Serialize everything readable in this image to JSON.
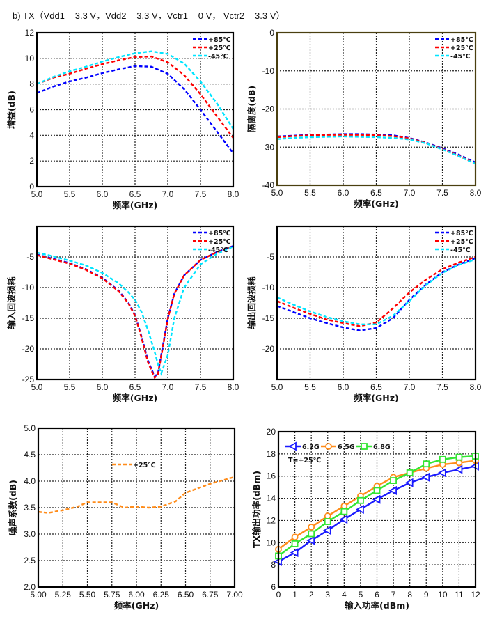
{
  "title": "b) TX（Vdd1 = 3.3 V，Vdd2 = 3.3 V，Vctr1 = 0 V， Vctr2 = 3.3 V）",
  "chart_data": [
    {
      "type": "line",
      "id": "gain",
      "xlabel": "频率(GHz)",
      "ylabel": "增益(dB)",
      "xlim": [
        5.0,
        8.0
      ],
      "ylim": [
        0,
        12
      ],
      "xticks": [
        "5.0",
        "5.5",
        "6.0",
        "6.5",
        "7.0",
        "7.5",
        "8.0"
      ],
      "yticks": [
        "0",
        "2",
        "4",
        "6",
        "8",
        "10",
        "12"
      ],
      "grid": true,
      "legend": "top-right",
      "frame_color": "#000000",
      "x": [
        5.0,
        5.25,
        5.5,
        5.75,
        6.0,
        6.25,
        6.5,
        6.75,
        7.0,
        7.25,
        7.5,
        7.75,
        8.0
      ],
      "series": [
        {
          "name": "+85℃",
          "color": "#0000ff",
          "style": "dashed",
          "values": [
            7.3,
            7.8,
            8.2,
            8.5,
            8.85,
            9.15,
            9.4,
            9.35,
            8.8,
            7.6,
            6.0,
            4.3,
            2.6
          ]
        },
        {
          "name": "+25℃",
          "color": "#ff0000",
          "style": "dashed",
          "values": [
            8.0,
            8.5,
            8.8,
            9.2,
            9.55,
            9.85,
            10.1,
            10.15,
            9.7,
            8.7,
            7.2,
            5.5,
            3.8
          ]
        },
        {
          "name": "-45℃",
          "color": "#00e5ff",
          "style": "dashed",
          "values": [
            8.0,
            8.55,
            9.0,
            9.35,
            9.75,
            10.1,
            10.4,
            10.55,
            10.35,
            9.6,
            8.2,
            6.5,
            4.5
          ]
        }
      ]
    },
    {
      "type": "line",
      "id": "isolation",
      "xlabel": "频率(GHz)",
      "ylabel": "隔离度(dB)",
      "xlim": [
        5.0,
        8.0
      ],
      "ylim": [
        -40,
        0
      ],
      "xticks": [
        "5.0",
        "5.5",
        "6.0",
        "6.5",
        "7.0",
        "7.5",
        "8.0"
      ],
      "yticks": [
        "-40",
        "-30",
        "-20",
        "-10",
        "0"
      ],
      "grid": true,
      "legend": "top-right",
      "frame_color": "#4a3f10",
      "x": [
        5.0,
        5.25,
        5.5,
        5.75,
        6.0,
        6.25,
        6.5,
        6.75,
        7.0,
        7.25,
        7.5,
        7.75,
        8.0
      ],
      "series": [
        {
          "name": "+85℃",
          "color": "#0000ff",
          "style": "dashed",
          "values": [
            -27.2,
            -27.0,
            -26.8,
            -26.7,
            -26.6,
            -26.6,
            -26.7,
            -26.9,
            -27.6,
            -28.8,
            -30.3,
            -32.0,
            -34.0
          ]
        },
        {
          "name": "+25℃",
          "color": "#ff0000",
          "style": "dashed",
          "values": [
            -27.4,
            -27.1,
            -26.9,
            -26.8,
            -26.8,
            -26.8,
            -26.9,
            -27.1,
            -27.7,
            -28.9,
            -30.5,
            -32.3,
            -34.3
          ]
        },
        {
          "name": "-45℃",
          "color": "#00e5ff",
          "style": "dashed",
          "values": [
            -27.9,
            -27.6,
            -27.4,
            -27.3,
            -27.2,
            -27.3,
            -27.4,
            -27.6,
            -28.0,
            -29.0,
            -30.6,
            -32.4,
            -34.4
          ]
        }
      ]
    },
    {
      "type": "line",
      "id": "input-return-loss",
      "xlabel": "频率(GHz)",
      "ylabel": "输入回波损耗",
      "xlim": [
        5.0,
        8.0
      ],
      "ylim": [
        -25,
        0
      ],
      "xticks": [
        "5.0",
        "5.5",
        "6.0",
        "6.5",
        "7.0",
        "7.5",
        "8.0"
      ],
      "yticks": [
        "-25",
        "-20",
        "-15",
        "-10",
        "-5"
      ],
      "grid": true,
      "legend": "top-right",
      "frame_color": "#000000",
      "x": [
        5.0,
        5.25,
        5.5,
        5.75,
        6.0,
        6.25,
        6.4,
        6.5,
        6.6,
        6.7,
        6.8,
        6.85,
        6.9,
        7.0,
        7.1,
        7.25,
        7.5,
        7.75,
        8.0
      ],
      "series": [
        {
          "name": "+85℃",
          "color": "#0000ff",
          "style": "dashed",
          "values": [
            -4.6,
            -5.3,
            -6.0,
            -7.0,
            -8.4,
            -10.5,
            -12.5,
            -14.5,
            -18.0,
            -22.0,
            -24.5,
            -24.0,
            -21.0,
            -15.0,
            -11.0,
            -8.0,
            -5.5,
            -4.2,
            -3.2
          ]
        },
        {
          "name": "+25℃",
          "color": "#ff0000",
          "style": "dashed",
          "values": [
            -4.7,
            -5.4,
            -6.1,
            -7.1,
            -8.5,
            -10.6,
            -12.6,
            -14.6,
            -18.2,
            -22.3,
            -24.7,
            -24.1,
            -21.2,
            -15.1,
            -11.0,
            -8.0,
            -5.5,
            -4.2,
            -3.2
          ]
        },
        {
          "name": "-45℃",
          "color": "#00e5ff",
          "style": "dashed",
          "values": [
            -4.3,
            -4.9,
            -5.6,
            -6.4,
            -7.6,
            -9.3,
            -10.8,
            -12.0,
            -14.0,
            -17.0,
            -20.5,
            -22.5,
            -24.0,
            -21.0,
            -15.0,
            -10.0,
            -6.2,
            -4.5,
            -3.3
          ]
        }
      ]
    },
    {
      "type": "line",
      "id": "output-return-loss",
      "xlabel": "频率(GHz)",
      "ylabel": "输出回波损耗",
      "xlim": [
        5.0,
        8.0
      ],
      "ylim": [
        -25,
        0
      ],
      "xticks": [
        "5.0",
        "5.5",
        "6.0",
        "6.5",
        "7.0",
        "7.5",
        "8.0"
      ],
      "yticks": [
        "-20",
        "-15",
        "-10",
        "-5"
      ],
      "grid": true,
      "legend": "top-right",
      "frame_color": "#000000",
      "x": [
        5.0,
        5.25,
        5.5,
        5.75,
        6.0,
        6.25,
        6.5,
        6.75,
        7.0,
        7.25,
        7.5,
        7.75,
        8.0
      ],
      "series": [
        {
          "name": "+85℃",
          "color": "#0000ff",
          "style": "dashed",
          "values": [
            -13.0,
            -14.0,
            -15.0,
            -15.8,
            -16.5,
            -17.0,
            -16.6,
            -15.0,
            -12.0,
            -9.5,
            -7.5,
            -6.2,
            -5.2
          ]
        },
        {
          "name": "+25℃",
          "color": "#ff0000",
          "style": "dashed",
          "values": [
            -12.2,
            -13.3,
            -14.3,
            -15.2,
            -15.8,
            -16.3,
            -15.7,
            -13.4,
            -10.8,
            -8.7,
            -7.0,
            -5.9,
            -5.0
          ]
        },
        {
          "name": "-45℃",
          "color": "#00e5ff",
          "style": "dashed",
          "values": [
            -11.6,
            -12.8,
            -13.9,
            -14.8,
            -15.5,
            -16.0,
            -16.0,
            -14.6,
            -12.2,
            -9.6,
            -7.6,
            -6.3,
            -5.4
          ]
        }
      ]
    },
    {
      "type": "line",
      "id": "noise-figure",
      "xlabel": "频率(GHz)",
      "ylabel": "噪声系数(dB)",
      "xlim": [
        5.0,
        7.0
      ],
      "ylim": [
        2.0,
        5.0
      ],
      "xticks": [
        "5.00",
        "5.25",
        "5.50",
        "5.75",
        "6.00",
        "6.25",
        "6.50",
        "6.75",
        "7.00"
      ],
      "yticks": [
        "2.0",
        "2.5",
        "3.0",
        "3.5",
        "4.0",
        "4.5",
        "5.0"
      ],
      "grid": true,
      "legend": "center",
      "frame_color": "#000000",
      "x": [
        5.0,
        5.1,
        5.25,
        5.4,
        5.5,
        5.6,
        5.75,
        5.875,
        6.0,
        6.125,
        6.25,
        6.4,
        6.5,
        6.75,
        7.0
      ],
      "series": [
        {
          "name": "+25℃",
          "color": "#ff8c1a",
          "style": "dashed",
          "values": [
            3.42,
            3.4,
            3.45,
            3.52,
            3.6,
            3.6,
            3.6,
            3.5,
            3.52,
            3.5,
            3.52,
            3.62,
            3.78,
            3.95,
            4.08
          ]
        }
      ]
    },
    {
      "type": "line",
      "id": "tx-output-power",
      "xlabel": "输入功率(dBm)",
      "ylabel": "TX输出功率(dBm)",
      "xlim": [
        0,
        12
      ],
      "ylim": [
        6,
        20
      ],
      "xticks": [
        "0",
        "1",
        "2",
        "3",
        "4",
        "5",
        "6",
        "7",
        "8",
        "9",
        "10",
        "11",
        "12"
      ],
      "yticks": [
        "6",
        "8",
        "10",
        "12",
        "14",
        "16",
        "18",
        "20"
      ],
      "grid": true,
      "legend": "top-left",
      "frame_color": "#000000",
      "annotation": "T=+25℃",
      "x": [
        0,
        1,
        2,
        3,
        4,
        5,
        6,
        7,
        8,
        9,
        10,
        11,
        12
      ],
      "series": [
        {
          "name": "6.2G",
          "color": "#1a1aff",
          "style": "solid",
          "marker": "triangle-left",
          "values": [
            8.3,
            9.1,
            10.2,
            11.1,
            12.1,
            13.0,
            13.9,
            14.7,
            15.4,
            15.9,
            16.3,
            16.6,
            16.9
          ]
        },
        {
          "name": "6.5G",
          "color": "#ff8c1a",
          "style": "solid",
          "marker": "circle",
          "values": [
            9.4,
            10.5,
            11.4,
            12.4,
            13.3,
            14.2,
            15.1,
            15.9,
            16.3,
            16.7,
            17.05,
            17.2,
            17.4
          ]
        },
        {
          "name": "6.8G",
          "color": "#33e633",
          "style": "solid",
          "marker": "square",
          "values": [
            8.8,
            9.9,
            10.8,
            11.9,
            12.8,
            13.8,
            14.7,
            15.6,
            16.3,
            17.1,
            17.5,
            17.7,
            17.8
          ]
        }
      ]
    }
  ]
}
